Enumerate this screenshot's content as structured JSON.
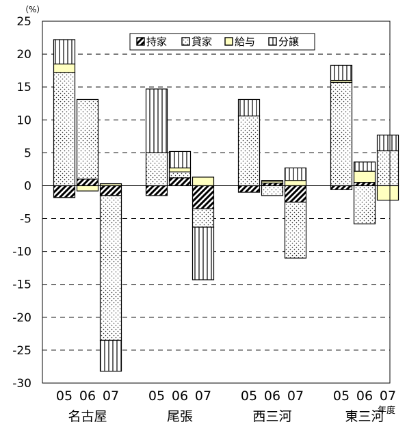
{
  "chart_data": {
    "type": "bar",
    "stacked": true,
    "unit_label": "（%）",
    "ylim": [
      -30,
      25
    ],
    "y_ticks": [
      25,
      20,
      15,
      10,
      5,
      0,
      -5,
      -10,
      -15,
      -20,
      -25,
      -30
    ],
    "grid": "dashed-horizontal",
    "legend_position": "top-center",
    "x_suffix": "年度",
    "groups": [
      {
        "name": "名古屋",
        "years": [
          "05",
          "06",
          "07"
        ]
      },
      {
        "name": "尾張",
        "years": [
          "05",
          "06",
          "07"
        ]
      },
      {
        "name": "西三河",
        "years": [
          "05",
          "06",
          "07"
        ]
      },
      {
        "name": "東三河",
        "years": [
          "05",
          "06",
          "07"
        ]
      }
    ],
    "series": [
      {
        "name": "持家",
        "pattern": "diagonal",
        "values": [
          -1.8,
          1.0,
          -1.5,
          -1.5,
          1.2,
          -3.5,
          -1.0,
          0.4,
          -2.5,
          -0.6,
          0.5,
          0.0
        ]
      },
      {
        "name": "貸家",
        "pattern": "dotted",
        "values": [
          17.2,
          12.1,
          -22.0,
          5.0,
          0.9,
          -2.8,
          10.6,
          -1.5,
          -8.5,
          15.7,
          -5.8,
          5.3
        ]
      },
      {
        "name": "給与",
        "color": "#ffffc0",
        "values": [
          1.3,
          -0.8,
          0.3,
          0.0,
          0.6,
          1.3,
          0.0,
          0.3,
          0.8,
          0.3,
          1.7,
          -2.2
        ]
      },
      {
        "name": "分譲",
        "pattern": "vertical",
        "values": [
          3.7,
          0.0,
          -4.7,
          9.7,
          2.5,
          -8.0,
          2.5,
          0.1,
          1.9,
          2.3,
          1.4,
          2.4
        ]
      }
    ]
  }
}
